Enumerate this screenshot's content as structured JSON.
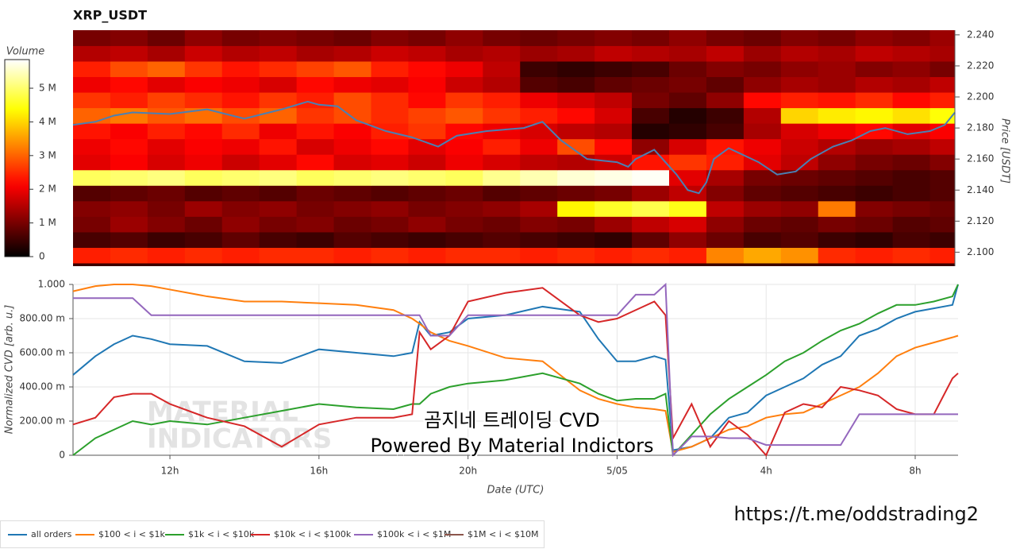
{
  "chart_data": [
    {
      "type": "heatmap",
      "title": "XRP_USDT",
      "colorbar_title": "Volume",
      "y_label": "Price [USDT]",
      "colormap": "hot",
      "xlim": [
        9.4,
        33.07
      ],
      "ylim": [
        2.091,
        2.243
      ],
      "yticks": [
        {
          "value": 2.1,
          "label": "2.100"
        },
        {
          "value": 2.12,
          "label": "2.120"
        },
        {
          "value": 2.14,
          "label": "2.140"
        },
        {
          "value": 2.16,
          "label": "2.160"
        },
        {
          "value": 2.18,
          "label": "2.180"
        },
        {
          "value": 2.2,
          "label": "2.200"
        },
        {
          "value": 2.22,
          "label": "2.220"
        },
        {
          "value": 2.24,
          "label": "2.240"
        }
      ],
      "zlim": [
        0,
        5850000
      ],
      "zticks": [
        0,
        {
          "value": 1000000,
          "label": "1 M"
        },
        {
          "value": 2000000,
          "label": "2 M"
        },
        {
          "value": 3000000,
          "label": "3 M"
        },
        {
          "value": 4000000,
          "label": "4 M"
        },
        {
          "value": 5000000,
          "label": "5 M"
        }
      ],
      "x_bins": [
        9.4,
        10.4,
        11.4,
        12.4,
        13.4,
        14.4,
        15.4,
        16.4,
        17.4,
        18.4,
        19.4,
        20.4,
        21.4,
        22.4,
        23.4,
        24.4,
        25.4,
        26.4,
        27.4,
        28.4,
        29.4,
        30.4,
        31.4,
        32.4,
        33.07
      ],
      "y_bins": [
        2.093,
        2.103,
        2.113,
        2.123,
        2.133,
        2.143,
        2.153,
        2.163,
        2.173,
        2.183,
        2.193,
        2.203,
        2.213,
        2.223,
        2.233,
        2.243
      ],
      "values": [
        [
          2400000.0,
          2500000.0,
          2400000.0,
          2500000.0,
          2400000.0,
          2500000.0,
          2500000.0,
          2400000.0,
          2500000.0,
          2400000.0,
          2500000.0,
          2500000.0,
          2400000.0,
          2500000.0,
          2400000.0,
          2500000.0,
          2400000.0,
          3300000.0,
          3600000.0,
          3400000.0,
          2500000.0,
          2400000.0,
          2500000.0,
          2400000.0
        ],
        [
          600000.0,
          700000.0,
          500000.0,
          600000.0,
          800000.0,
          600000.0,
          500000.0,
          700000.0,
          600000.0,
          500000.0,
          600000.0,
          700000.0,
          600000.0,
          500000.0,
          400000.0,
          800000.0,
          1200000.0,
          900000.0,
          600000.0,
          700000.0,
          500000.0,
          400000.0,
          600000.0,
          500000.0
        ],
        [
          1000000.0,
          1300000.0,
          1100000.0,
          900000.0,
          1200000.0,
          1000000.0,
          1100000.0,
          900000.0,
          1000000.0,
          1200000.0,
          1000000.0,
          900000.0,
          1100000.0,
          1000000.0,
          1300000.0,
          1600000.0,
          1800000.0,
          1200000.0,
          900000.0,
          800000.0,
          1000000.0,
          900000.0,
          700000.0,
          800000.0
        ],
        [
          1100000.0,
          1200000.0,
          1000000.0,
          1300000.0,
          1100000.0,
          1200000.0,
          1000000.0,
          1100000.0,
          1200000.0,
          1000000.0,
          1100000.0,
          1200000.0,
          1400000.0,
          4300000.0,
          4600000.0,
          4800000.0,
          4500000.0,
          1600000.0,
          1300000.0,
          1200000.0,
          3200000.0,
          1100000.0,
          1000000.0,
          900000.0
        ],
        [
          700000.0,
          800000.0,
          900000.0,
          700000.0,
          800000.0,
          700000.0,
          900000.0,
          800000.0,
          700000.0,
          800000.0,
          900000.0,
          700000.0,
          800000.0,
          900000.0,
          1000000.0,
          1300000.0,
          1600000.0,
          1100000.0,
          800000.0,
          700000.0,
          600000.0,
          500000.0,
          600000.0,
          700000.0
        ],
        [
          4900000.0,
          5000000.0,
          5100000.0,
          4900000.0,
          5000000.0,
          5100000.0,
          4900000.0,
          5000000.0,
          5100000.0,
          5000000.0,
          4900000.0,
          5200000.0,
          5400000.0,
          5600000.0,
          5700000.0,
          5800000.0,
          1900000.0,
          1400000.0,
          1000000.0,
          900000.0,
          800000.0,
          700000.0,
          600000.0,
          700000.0
        ],
        [
          1900000.0,
          2100000.0,
          1800000.0,
          2000000.0,
          1700000.0,
          1900000.0,
          2200000.0,
          1800000.0,
          1900000.0,
          1700000.0,
          2000000.0,
          1800000.0,
          1600000.0,
          1500000.0,
          1700000.0,
          2300000.0,
          2600000.0,
          2400000.0,
          1900000.0,
          1600000.0,
          1200000.0,
          1000000.0,
          900000.0,
          1100000.0
        ],
        [
          2000000.0,
          2200000.0,
          1900000.0,
          2100000.0,
          2000000.0,
          2300000.0,
          1800000.0,
          2000000.0,
          2200000.0,
          1900000.0,
          2100000.0,
          2400000.0,
          2000000.0,
          2800000.0,
          2200000.0,
          1200000.0,
          1800000.0,
          2300000.0,
          2000000.0,
          1700000.0,
          1500000.0,
          1300000.0,
          1400000.0,
          1600000.0
        ],
        [
          2300000.0,
          2100000.0,
          2400000.0,
          2200000.0,
          2500000.0,
          2000000.0,
          2300000.0,
          2100000.0,
          2400000.0,
          2600000.0,
          2200000.0,
          2000000.0,
          1800000.0,
          1600000.0,
          1500000.0,
          300000.0,
          400000.0,
          600000.0,
          1400000.0,
          1800000.0,
          2000000.0,
          2200000.0,
          1900000.0,
          2100000.0
        ],
        [
          3000000.0,
          3200000.0,
          2900000.0,
          3100000.0,
          2800000.0,
          3000000.0,
          2600000.0,
          2800000.0,
          2500000.0,
          2700000.0,
          2900000.0,
          2600000.0,
          2400000.0,
          2200000.0,
          1800000.0,
          600000.0,
          300000.0,
          500000.0,
          1500000.0,
          4000000.0,
          4200000.0,
          4300000.0,
          4100000.0,
          4400000.0
        ],
        [
          2600000.0,
          2400000.0,
          2700000.0,
          2500000.0,
          2300000.0,
          2600000.0,
          2400000.0,
          2800000.0,
          2500000.0,
          2200000.0,
          2600000.0,
          2400000.0,
          2000000.0,
          1800000.0,
          1600000.0,
          1000000.0,
          800000.0,
          1200000.0,
          2200000.0,
          2400000.0,
          2300000.0,
          2500000.0,
          2200000.0,
          2400000.0
        ],
        [
          2000000.0,
          2200000.0,
          1900000.0,
          2100000.0,
          2000000.0,
          1800000.0,
          2200000.0,
          2000000.0,
          1900000.0,
          2100000.0,
          1700000.0,
          1500000.0,
          700000.0,
          600000.0,
          800000.0,
          900000.0,
          1000000.0,
          800000.0,
          1200000.0,
          1400000.0,
          1300000.0,
          1500000.0,
          1400000.0,
          1600000.0
        ],
        [
          2400000.0,
          2800000.0,
          3000000.0,
          2600000.0,
          2300000.0,
          2500000.0,
          2700000.0,
          2900000.0,
          2400000.0,
          2200000.0,
          2000000.0,
          1600000.0,
          500000.0,
          400000.0,
          500000.0,
          600000.0,
          900000.0,
          1100000.0,
          1000000.0,
          1200000.0,
          1300000.0,
          1100000.0,
          1200000.0,
          1000000.0
        ],
        [
          1500000.0,
          1600000.0,
          1400000.0,
          1700000.0,
          1500000.0,
          1600000.0,
          1400000.0,
          1500000.0,
          1700000.0,
          1600000.0,
          1400000.0,
          1500000.0,
          1300000.0,
          1400000.0,
          1600000.0,
          1500000.0,
          1400000.0,
          1600000.0,
          1300000.0,
          1500000.0,
          1400000.0,
          1600000.0,
          1500000.0,
          1400000.0
        ],
        [
          1000000.0,
          1100000.0,
          900000.0,
          1200000.0,
          1000000.0,
          1100000.0,
          1000000.0,
          900000.0,
          1100000.0,
          1000000.0,
          1200000.0,
          1000000.0,
          900000.0,
          1000000.0,
          1100000.0,
          1000000.0,
          1200000.0,
          1000000.0,
          900000.0,
          1100000.0,
          1000000.0,
          1200000.0,
          1100000.0,
          1300000.0
        ]
      ],
      "price_line": {
        "color": "#4a80b4",
        "x": [
          9.4,
          10,
          10.5,
          11,
          12,
          13,
          14,
          15,
          15.7,
          16,
          16.5,
          17,
          17.8,
          18.5,
          19.2,
          19.7,
          20.5,
          21.5,
          22,
          22.5,
          23.2,
          24,
          24.3,
          24.5,
          25,
          25.3,
          25.6,
          25.9,
          26.2,
          26.4,
          26.6,
          27,
          27.8,
          28.3,
          28.8,
          29.2,
          29.8,
          30.3,
          30.8,
          31.2,
          31.8,
          32.4,
          32.8,
          33.07
        ],
        "values": [
          2.182,
          2.184,
          2.188,
          2.19,
          2.189,
          2.192,
          2.186,
          2.192,
          2.197,
          2.195,
          2.194,
          2.185,
          2.178,
          2.174,
          2.168,
          2.175,
          2.178,
          2.18,
          2.184,
          2.172,
          2.16,
          2.158,
          2.155,
          2.16,
          2.166,
          2.158,
          2.15,
          2.14,
          2.138,
          2.145,
          2.16,
          2.167,
          2.158,
          2.15,
          2.152,
          2.16,
          2.168,
          2.172,
          2.178,
          2.18,
          2.176,
          2.178,
          2.182,
          2.19
        ]
      }
    },
    {
      "type": "line",
      "x_label": "Date (UTC)",
      "y_label": "Normalized CVD [arb. u.]",
      "grid": true,
      "legend": "bottom-left",
      "xlim": [
        9.4,
        33.15
      ],
      "ylim": [
        0,
        1
      ],
      "xticks": [
        {
          "value": 12,
          "label": "12h"
        },
        {
          "value": 16,
          "label": "16h"
        },
        {
          "value": 20,
          "label": "20h"
        },
        {
          "value": 24,
          "label": "5/05"
        },
        {
          "value": 28,
          "label": "4h"
        },
        {
          "value": 32,
          "label": "8h"
        }
      ],
      "yticks": [
        0,
        {
          "value": 0.2,
          "label": "200.00 m"
        },
        {
          "value": 0.4,
          "label": "400.00 m"
        },
        {
          "value": 0.6,
          "label": "600.00 m"
        },
        {
          "value": 0.8,
          "label": "800.00 m"
        },
        {
          "value": 1,
          "label": "1.000"
        }
      ],
      "x": [
        9.4,
        10,
        10.5,
        11,
        11.5,
        12,
        13,
        14,
        15,
        16,
        17,
        18,
        18.5,
        18.7,
        19,
        19.5,
        20,
        21,
        22,
        23,
        23.5,
        24,
        24.5,
        25,
        25.3,
        25.5,
        26,
        26.5,
        27,
        27.5,
        28,
        28.5,
        29,
        29.5,
        30,
        30.5,
        31,
        31.5,
        32,
        32.5,
        33,
        33.15
      ],
      "series": [
        {
          "name": "all orders",
          "color": "#1f77b4",
          "values": [
            0.47,
            0.58,
            0.65,
            0.7,
            0.68,
            0.65,
            0.64,
            0.55,
            0.54,
            0.62,
            0.6,
            0.58,
            0.6,
            0.78,
            0.7,
            0.72,
            0.8,
            0.82,
            0.87,
            0.84,
            0.68,
            0.55,
            0.55,
            0.58,
            0.56,
            0.03,
            0.05,
            0.1,
            0.22,
            0.25,
            0.35,
            0.4,
            0.45,
            0.53,
            0.58,
            0.7,
            0.74,
            0.8,
            0.84,
            0.86,
            0.88,
            1.0
          ]
        },
        {
          "name": "$100 < i < $1k",
          "color": "#ff7f0e",
          "values": [
            0.96,
            0.99,
            1.0,
            1.0,
            0.99,
            0.97,
            0.93,
            0.9,
            0.9,
            0.89,
            0.88,
            0.85,
            0.8,
            0.77,
            0.72,
            0.67,
            0.64,
            0.57,
            0.55,
            0.38,
            0.33,
            0.3,
            0.28,
            0.27,
            0.26,
            0.02,
            0.05,
            0.1,
            0.15,
            0.17,
            0.22,
            0.24,
            0.25,
            0.3,
            0.35,
            0.4,
            0.48,
            0.58,
            0.63,
            0.66,
            0.69,
            0.7
          ]
        },
        {
          "name": "$1k < i < $10k",
          "color": "#2ca02c",
          "values": [
            0.0,
            0.1,
            0.15,
            0.2,
            0.18,
            0.2,
            0.18,
            0.22,
            0.26,
            0.3,
            0.28,
            0.27,
            0.3,
            0.3,
            0.36,
            0.4,
            0.42,
            0.44,
            0.48,
            0.42,
            0.36,
            0.32,
            0.33,
            0.33,
            0.36,
            0.0,
            0.12,
            0.24,
            0.33,
            0.4,
            0.47,
            0.55,
            0.6,
            0.67,
            0.73,
            0.77,
            0.83,
            0.88,
            0.88,
            0.9,
            0.93,
            1.0
          ]
        },
        {
          "name": "$10k < i < $100k",
          "color": "#d62728",
          "values": [
            0.18,
            0.22,
            0.34,
            0.36,
            0.36,
            0.3,
            0.22,
            0.17,
            0.05,
            0.18,
            0.22,
            0.22,
            0.24,
            0.72,
            0.62,
            0.7,
            0.9,
            0.95,
            0.98,
            0.82,
            0.78,
            0.8,
            0.85,
            0.9,
            0.82,
            0.1,
            0.3,
            0.05,
            0.2,
            0.12,
            0.0,
            0.25,
            0.3,
            0.28,
            0.4,
            0.38,
            0.35,
            0.27,
            0.24,
            0.24,
            0.45,
            0.48
          ]
        },
        {
          "name": "$100k < i < $1M",
          "color": "#9467bd",
          "values": [
            0.92,
            0.92,
            0.92,
            0.92,
            0.82,
            0.82,
            0.82,
            0.82,
            0.82,
            0.82,
            0.82,
            0.82,
            0.82,
            0.82,
            0.7,
            0.7,
            0.82,
            0.82,
            0.82,
            0.82,
            0.82,
            0.82,
            0.94,
            0.94,
            1.0,
            0.0,
            0.11,
            0.11,
            0.1,
            0.1,
            0.06,
            0.06,
            0.06,
            0.06,
            0.06,
            0.24,
            0.24,
            0.24,
            0.24,
            0.24,
            0.24,
            0.24
          ]
        },
        {
          "name": "$1M < i < $10M",
          "color": "#8c564b",
          "values": [
            null,
            null,
            null,
            null,
            null,
            null,
            null,
            null,
            null,
            null,
            null,
            null,
            null,
            null,
            null,
            null,
            null,
            null,
            null,
            null,
            null,
            null,
            null,
            null,
            null,
            null,
            null,
            null,
            null,
            null,
            null,
            null,
            null,
            null,
            null,
            null,
            null,
            null,
            null,
            null,
            null,
            null
          ]
        }
      ],
      "watermark": [
        "MATERIAL",
        "INDICATORS"
      ],
      "annotations": [
        "곰지네 트레이딩 CVD",
        "Powered By Material Indictors"
      ]
    }
  ],
  "link": "https://t.me/oddstrading2"
}
